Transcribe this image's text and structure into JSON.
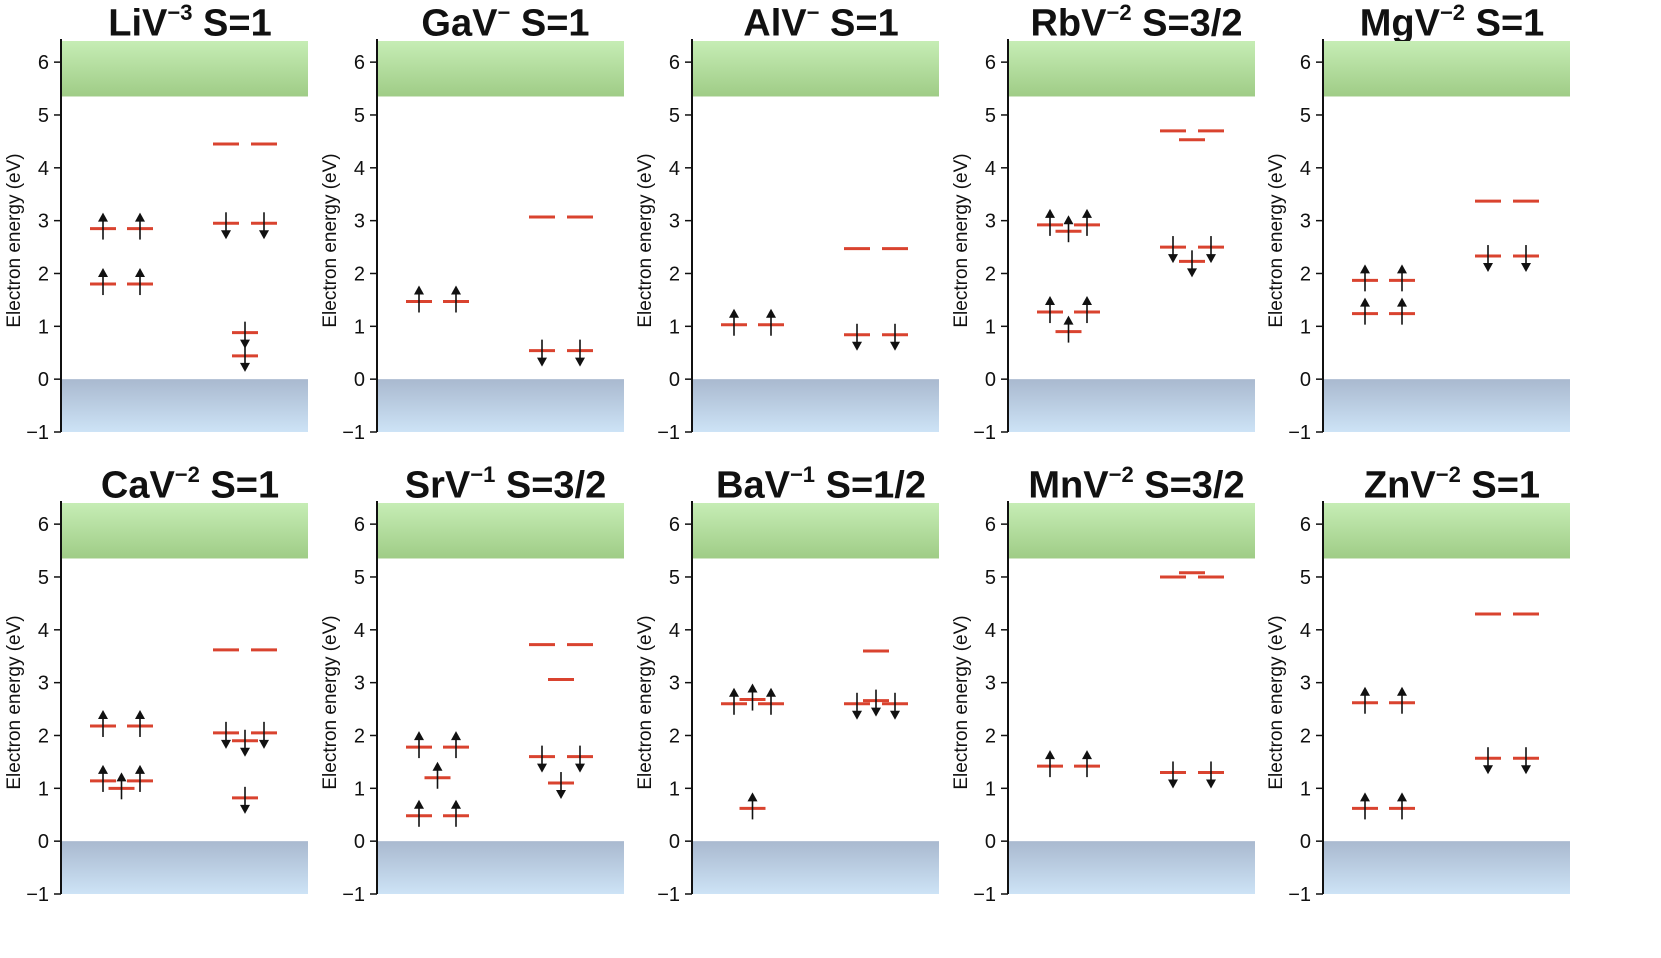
{
  "chart_data": [
    {
      "type": "energy-level-diagram",
      "title": "LiV",
      "charge": "−3",
      "spin": "S=1",
      "ylabel": "Electron energy (eV)",
      "ylim": [
        -1,
        6.4
      ],
      "yticks": [
        "−1",
        "0",
        "1",
        "2",
        "3",
        "4",
        "5",
        "6"
      ],
      "valence_band_top": 0,
      "conduction_band_bottom": 5.35,
      "levels": [
        {
          "col": 0,
          "pos": 0,
          "e": 2.85,
          "spin": "up"
        },
        {
          "col": 0,
          "pos": 1,
          "e": 2.85,
          "spin": "up"
        },
        {
          "col": 0,
          "pos": 0,
          "e": 1.8,
          "spin": "up"
        },
        {
          "col": 0,
          "pos": 1,
          "e": 1.8,
          "spin": "up"
        },
        {
          "col": 1,
          "pos": 0,
          "e": 4.45,
          "spin": "none"
        },
        {
          "col": 1,
          "pos": 1,
          "e": 4.45,
          "spin": "none"
        },
        {
          "col": 1,
          "pos": 0,
          "e": 2.95,
          "spin": "down"
        },
        {
          "col": 1,
          "pos": 1,
          "e": 2.95,
          "spin": "down"
        },
        {
          "col": 1,
          "pos": 0.5,
          "e": 0.88,
          "spin": "down"
        },
        {
          "col": 1,
          "pos": 0.5,
          "e": 0.44,
          "spin": "down"
        }
      ]
    },
    {
      "type": "energy-level-diagram",
      "title": "GaV",
      "charge": "−",
      "spin": "S=1",
      "ylabel": "Electron energy (eV)",
      "ylim": [
        -1,
        6.4
      ],
      "yticks": [
        "−1",
        "0",
        "1",
        "2",
        "3",
        "4",
        "5",
        "6"
      ],
      "valence_band_top": 0,
      "conduction_band_bottom": 5.35,
      "levels": [
        {
          "col": 0,
          "pos": 0,
          "e": 1.47,
          "spin": "up"
        },
        {
          "col": 0,
          "pos": 1,
          "e": 1.47,
          "spin": "up"
        },
        {
          "col": 1,
          "pos": 0,
          "e": 3.07,
          "spin": "none"
        },
        {
          "col": 1,
          "pos": 1,
          "e": 3.07,
          "spin": "none"
        },
        {
          "col": 1,
          "pos": 0,
          "e": 0.54,
          "spin": "down"
        },
        {
          "col": 1,
          "pos": 1,
          "e": 0.54,
          "spin": "down"
        }
      ]
    },
    {
      "type": "energy-level-diagram",
      "title": "AlV",
      "charge": "−",
      "spin": "S=1",
      "ylabel": "Electron energy (eV)",
      "ylim": [
        -1,
        6.4
      ],
      "yticks": [
        "−1",
        "0",
        "1",
        "2",
        "3",
        "4",
        "5",
        "6"
      ],
      "valence_band_top": 0,
      "conduction_band_bottom": 5.35,
      "levels": [
        {
          "col": 0,
          "pos": 0,
          "e": 1.03,
          "spin": "up"
        },
        {
          "col": 0,
          "pos": 1,
          "e": 1.03,
          "spin": "up"
        },
        {
          "col": 1,
          "pos": 0,
          "e": 2.47,
          "spin": "none"
        },
        {
          "col": 1,
          "pos": 1,
          "e": 2.47,
          "spin": "none"
        },
        {
          "col": 1,
          "pos": 0,
          "e": 0.84,
          "spin": "down"
        },
        {
          "col": 1,
          "pos": 1,
          "e": 0.84,
          "spin": "down"
        }
      ]
    },
    {
      "type": "energy-level-diagram",
      "title": "RbV",
      "charge": "−2",
      "spin": "S=3/2",
      "ylabel": "Electron energy (eV)",
      "ylim": [
        -1,
        6.4
      ],
      "yticks": [
        "−1",
        "0",
        "1",
        "2",
        "3",
        "4",
        "5",
        "6"
      ],
      "valence_band_top": 0,
      "conduction_band_bottom": 5.35,
      "levels": [
        {
          "col": 0,
          "pos": 0,
          "e": 2.92,
          "spin": "up"
        },
        {
          "col": 0,
          "pos": 0.5,
          "e": 2.8,
          "spin": "up"
        },
        {
          "col": 0,
          "pos": 1,
          "e": 2.92,
          "spin": "up"
        },
        {
          "col": 0,
          "pos": 0,
          "e": 1.27,
          "spin": "up"
        },
        {
          "col": 0,
          "pos": 0.5,
          "e": 0.9,
          "spin": "up"
        },
        {
          "col": 0,
          "pos": 1,
          "e": 1.27,
          "spin": "up"
        },
        {
          "col": 1,
          "pos": 0,
          "e": 4.7,
          "spin": "none"
        },
        {
          "col": 1,
          "pos": 0.5,
          "e": 4.53,
          "spin": "none"
        },
        {
          "col": 1,
          "pos": 1,
          "e": 4.7,
          "spin": "none"
        },
        {
          "col": 1,
          "pos": 0,
          "e": 2.5,
          "spin": "down"
        },
        {
          "col": 1,
          "pos": 0.5,
          "e": 2.23,
          "spin": "down"
        },
        {
          "col": 1,
          "pos": 1,
          "e": 2.5,
          "spin": "down"
        }
      ]
    },
    {
      "type": "energy-level-diagram",
      "title": "MgV",
      "charge": "−2",
      "spin": "S=1",
      "ylabel": "Electron energy (eV)",
      "ylim": [
        -1,
        6.4
      ],
      "yticks": [
        "−1",
        "0",
        "1",
        "2",
        "3",
        "4",
        "5",
        "6"
      ],
      "valence_band_top": 0,
      "conduction_band_bottom": 5.35,
      "levels": [
        {
          "col": 0,
          "pos": 0,
          "e": 1.87,
          "spin": "up"
        },
        {
          "col": 0,
          "pos": 1,
          "e": 1.87,
          "spin": "up"
        },
        {
          "col": 0,
          "pos": 0,
          "e": 1.24,
          "spin": "up"
        },
        {
          "col": 0,
          "pos": 1,
          "e": 1.24,
          "spin": "up"
        },
        {
          "col": 1,
          "pos": 0,
          "e": 3.37,
          "spin": "none"
        },
        {
          "col": 1,
          "pos": 1,
          "e": 3.37,
          "spin": "none"
        },
        {
          "col": 1,
          "pos": 0,
          "e": 2.33,
          "spin": "down"
        },
        {
          "col": 1,
          "pos": 1,
          "e": 2.33,
          "spin": "down"
        }
      ]
    },
    {
      "type": "energy-level-diagram",
      "title": "CaV",
      "charge": "−2",
      "spin": "S=1",
      "ylabel": "Electron energy (eV)",
      "ylim": [
        -1,
        6.4
      ],
      "yticks": [
        "−1",
        "0",
        "1",
        "2",
        "3",
        "4",
        "5",
        "6"
      ],
      "valence_band_top": 0,
      "conduction_band_bottom": 5.35,
      "levels": [
        {
          "col": 0,
          "pos": 0,
          "e": 2.18,
          "spin": "up"
        },
        {
          "col": 0,
          "pos": 1,
          "e": 2.18,
          "spin": "up"
        },
        {
          "col": 0,
          "pos": 0,
          "e": 1.14,
          "spin": "up"
        },
        {
          "col": 0,
          "pos": 0.5,
          "e": 1.0,
          "spin": "up"
        },
        {
          "col": 0,
          "pos": 1,
          "e": 1.14,
          "spin": "up"
        },
        {
          "col": 1,
          "pos": 0,
          "e": 3.62,
          "spin": "none"
        },
        {
          "col": 1,
          "pos": 1,
          "e": 3.62,
          "spin": "none"
        },
        {
          "col": 1,
          "pos": 0,
          "e": 2.05,
          "spin": "down"
        },
        {
          "col": 1,
          "pos": 0.5,
          "e": 1.9,
          "spin": "down"
        },
        {
          "col": 1,
          "pos": 1,
          "e": 2.05,
          "spin": "down"
        },
        {
          "col": 1,
          "pos": 0.5,
          "e": 0.82,
          "spin": "down"
        }
      ]
    },
    {
      "type": "energy-level-diagram",
      "title": "SrV",
      "charge": "−1",
      "spin": "S=3/2",
      "ylabel": "Electron energy (eV)",
      "ylim": [
        -1,
        6.4
      ],
      "yticks": [
        "−1",
        "0",
        "1",
        "2",
        "3",
        "4",
        "5",
        "6"
      ],
      "valence_band_top": 0,
      "conduction_band_bottom": 5.35,
      "levels": [
        {
          "col": 0,
          "pos": 0,
          "e": 1.78,
          "spin": "up"
        },
        {
          "col": 0,
          "pos": 1,
          "e": 1.78,
          "spin": "up"
        },
        {
          "col": 0,
          "pos": 0.5,
          "e": 1.2,
          "spin": "up"
        },
        {
          "col": 0,
          "pos": 0,
          "e": 0.48,
          "spin": "up"
        },
        {
          "col": 0,
          "pos": 1,
          "e": 0.48,
          "spin": "up"
        },
        {
          "col": 1,
          "pos": 0,
          "e": 3.72,
          "spin": "none"
        },
        {
          "col": 1,
          "pos": 1,
          "e": 3.72,
          "spin": "none"
        },
        {
          "col": 1,
          "pos": 0.5,
          "e": 3.06,
          "spin": "none"
        },
        {
          "col": 1,
          "pos": 0,
          "e": 1.6,
          "spin": "down"
        },
        {
          "col": 1,
          "pos": 1,
          "e": 1.6,
          "spin": "down"
        },
        {
          "col": 1,
          "pos": 0.5,
          "e": 1.1,
          "spin": "down"
        }
      ]
    },
    {
      "type": "energy-level-diagram",
      "title": "BaV",
      "charge": "−1",
      "spin": "S=1/2",
      "ylabel": "Electron energy (eV)",
      "ylim": [
        -1,
        6.4
      ],
      "yticks": [
        "−1",
        "0",
        "1",
        "2",
        "3",
        "4",
        "5",
        "6"
      ],
      "valence_band_top": 0,
      "conduction_band_bottom": 5.35,
      "levels": [
        {
          "col": 0,
          "pos": 0,
          "e": 2.6,
          "spin": "up"
        },
        {
          "col": 0,
          "pos": 0.5,
          "e": 2.68,
          "spin": "up"
        },
        {
          "col": 0,
          "pos": 1,
          "e": 2.6,
          "spin": "up"
        },
        {
          "col": 0,
          "pos": 0.5,
          "e": 0.62,
          "spin": "up"
        },
        {
          "col": 1,
          "pos": 0.5,
          "e": 3.6,
          "spin": "none"
        },
        {
          "col": 1,
          "pos": 0,
          "e": 2.6,
          "spin": "down"
        },
        {
          "col": 1,
          "pos": 0.5,
          "e": 2.66,
          "spin": "down"
        },
        {
          "col": 1,
          "pos": 1,
          "e": 2.6,
          "spin": "down"
        }
      ]
    },
    {
      "type": "energy-level-diagram",
      "title": "MnV",
      "charge": "−2",
      "spin": "S=3/2",
      "ylabel": "Electron energy (eV)",
      "ylim": [
        -1,
        6.4
      ],
      "yticks": [
        "−1",
        "0",
        "1",
        "2",
        "3",
        "4",
        "5",
        "6"
      ],
      "valence_band_top": 0,
      "conduction_band_bottom": 5.35,
      "levels": [
        {
          "col": 0,
          "pos": 0,
          "e": 1.42,
          "spin": "up"
        },
        {
          "col": 0,
          "pos": 1,
          "e": 1.42,
          "spin": "up"
        },
        {
          "col": 1,
          "pos": 0,
          "e": 5.0,
          "spin": "none"
        },
        {
          "col": 1,
          "pos": 0.5,
          "e": 5.08,
          "spin": "none"
        },
        {
          "col": 1,
          "pos": 1,
          "e": 5.0,
          "spin": "none"
        },
        {
          "col": 1,
          "pos": 0,
          "e": 1.3,
          "spin": "down"
        },
        {
          "col": 1,
          "pos": 1,
          "e": 1.3,
          "spin": "down"
        }
      ]
    },
    {
      "type": "energy-level-diagram",
      "title": "ZnV",
      "charge": "−2",
      "spin": "S=1",
      "ylabel": "Electron energy (eV)",
      "ylim": [
        -1,
        6.4
      ],
      "yticks": [
        "−1",
        "0",
        "1",
        "2",
        "3",
        "4",
        "5",
        "6"
      ],
      "valence_band_top": 0,
      "conduction_band_bottom": 5.35,
      "levels": [
        {
          "col": 0,
          "pos": 0,
          "e": 2.62,
          "spin": "up"
        },
        {
          "col": 0,
          "pos": 1,
          "e": 2.62,
          "spin": "up"
        },
        {
          "col": 0,
          "pos": 0,
          "e": 0.62,
          "spin": "up"
        },
        {
          "col": 0,
          "pos": 1,
          "e": 0.62,
          "spin": "up"
        },
        {
          "col": 1,
          "pos": 0,
          "e": 4.3,
          "spin": "none"
        },
        {
          "col": 1,
          "pos": 1,
          "e": 4.3,
          "spin": "none"
        },
        {
          "col": 1,
          "pos": 0,
          "e": 1.57,
          "spin": "down"
        },
        {
          "col": 1,
          "pos": 1,
          "e": 1.57,
          "spin": "down"
        }
      ]
    }
  ],
  "colors": {
    "level": "#d9432f",
    "arrow": "#111111",
    "axis": "#111111",
    "valence_top": "#a9b9cf",
    "valence_bottom": "#cde3f6",
    "conduction_top": "#c6edb5",
    "conduction_bottom": "#9fcc86"
  }
}
